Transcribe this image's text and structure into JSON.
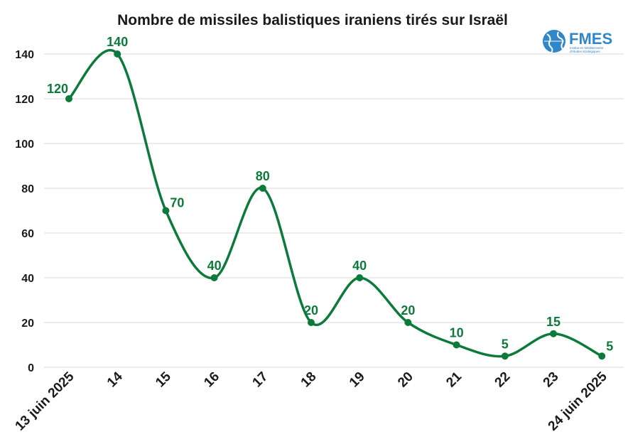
{
  "colors": {
    "series": "#0b7a3b",
    "grid": "#d9d9d9",
    "text": "#1a1a1a",
    "logo_blue": "#2f86c9"
  },
  "logo": {
    "name": "FMES",
    "subtitle_line1": "Institut en Méditerranée",
    "subtitle_line2": "d'études stratégiques",
    "icon": "globe-icon"
  },
  "chart_data": {
    "type": "line",
    "title": "Nombre de missiles balistiques iraniens tirés sur Israël",
    "xlabel": "",
    "ylabel": "",
    "categories": [
      "13 juin 2025",
      "14",
      "15",
      "16",
      "17",
      "18",
      "19",
      "20",
      "21",
      "22",
      "23",
      "24 juin 2025"
    ],
    "series": [
      {
        "values": [
          120,
          140,
          70,
          40,
          80,
          20,
          40,
          20,
          10,
          5,
          15,
          5
        ]
      }
    ],
    "ylim": [
      0,
      140
    ],
    "yticks": [
      0,
      20,
      40,
      60,
      80,
      100,
      120,
      140
    ],
    "grid": true,
    "smooth": true,
    "data_labels": true,
    "legend": "none"
  }
}
